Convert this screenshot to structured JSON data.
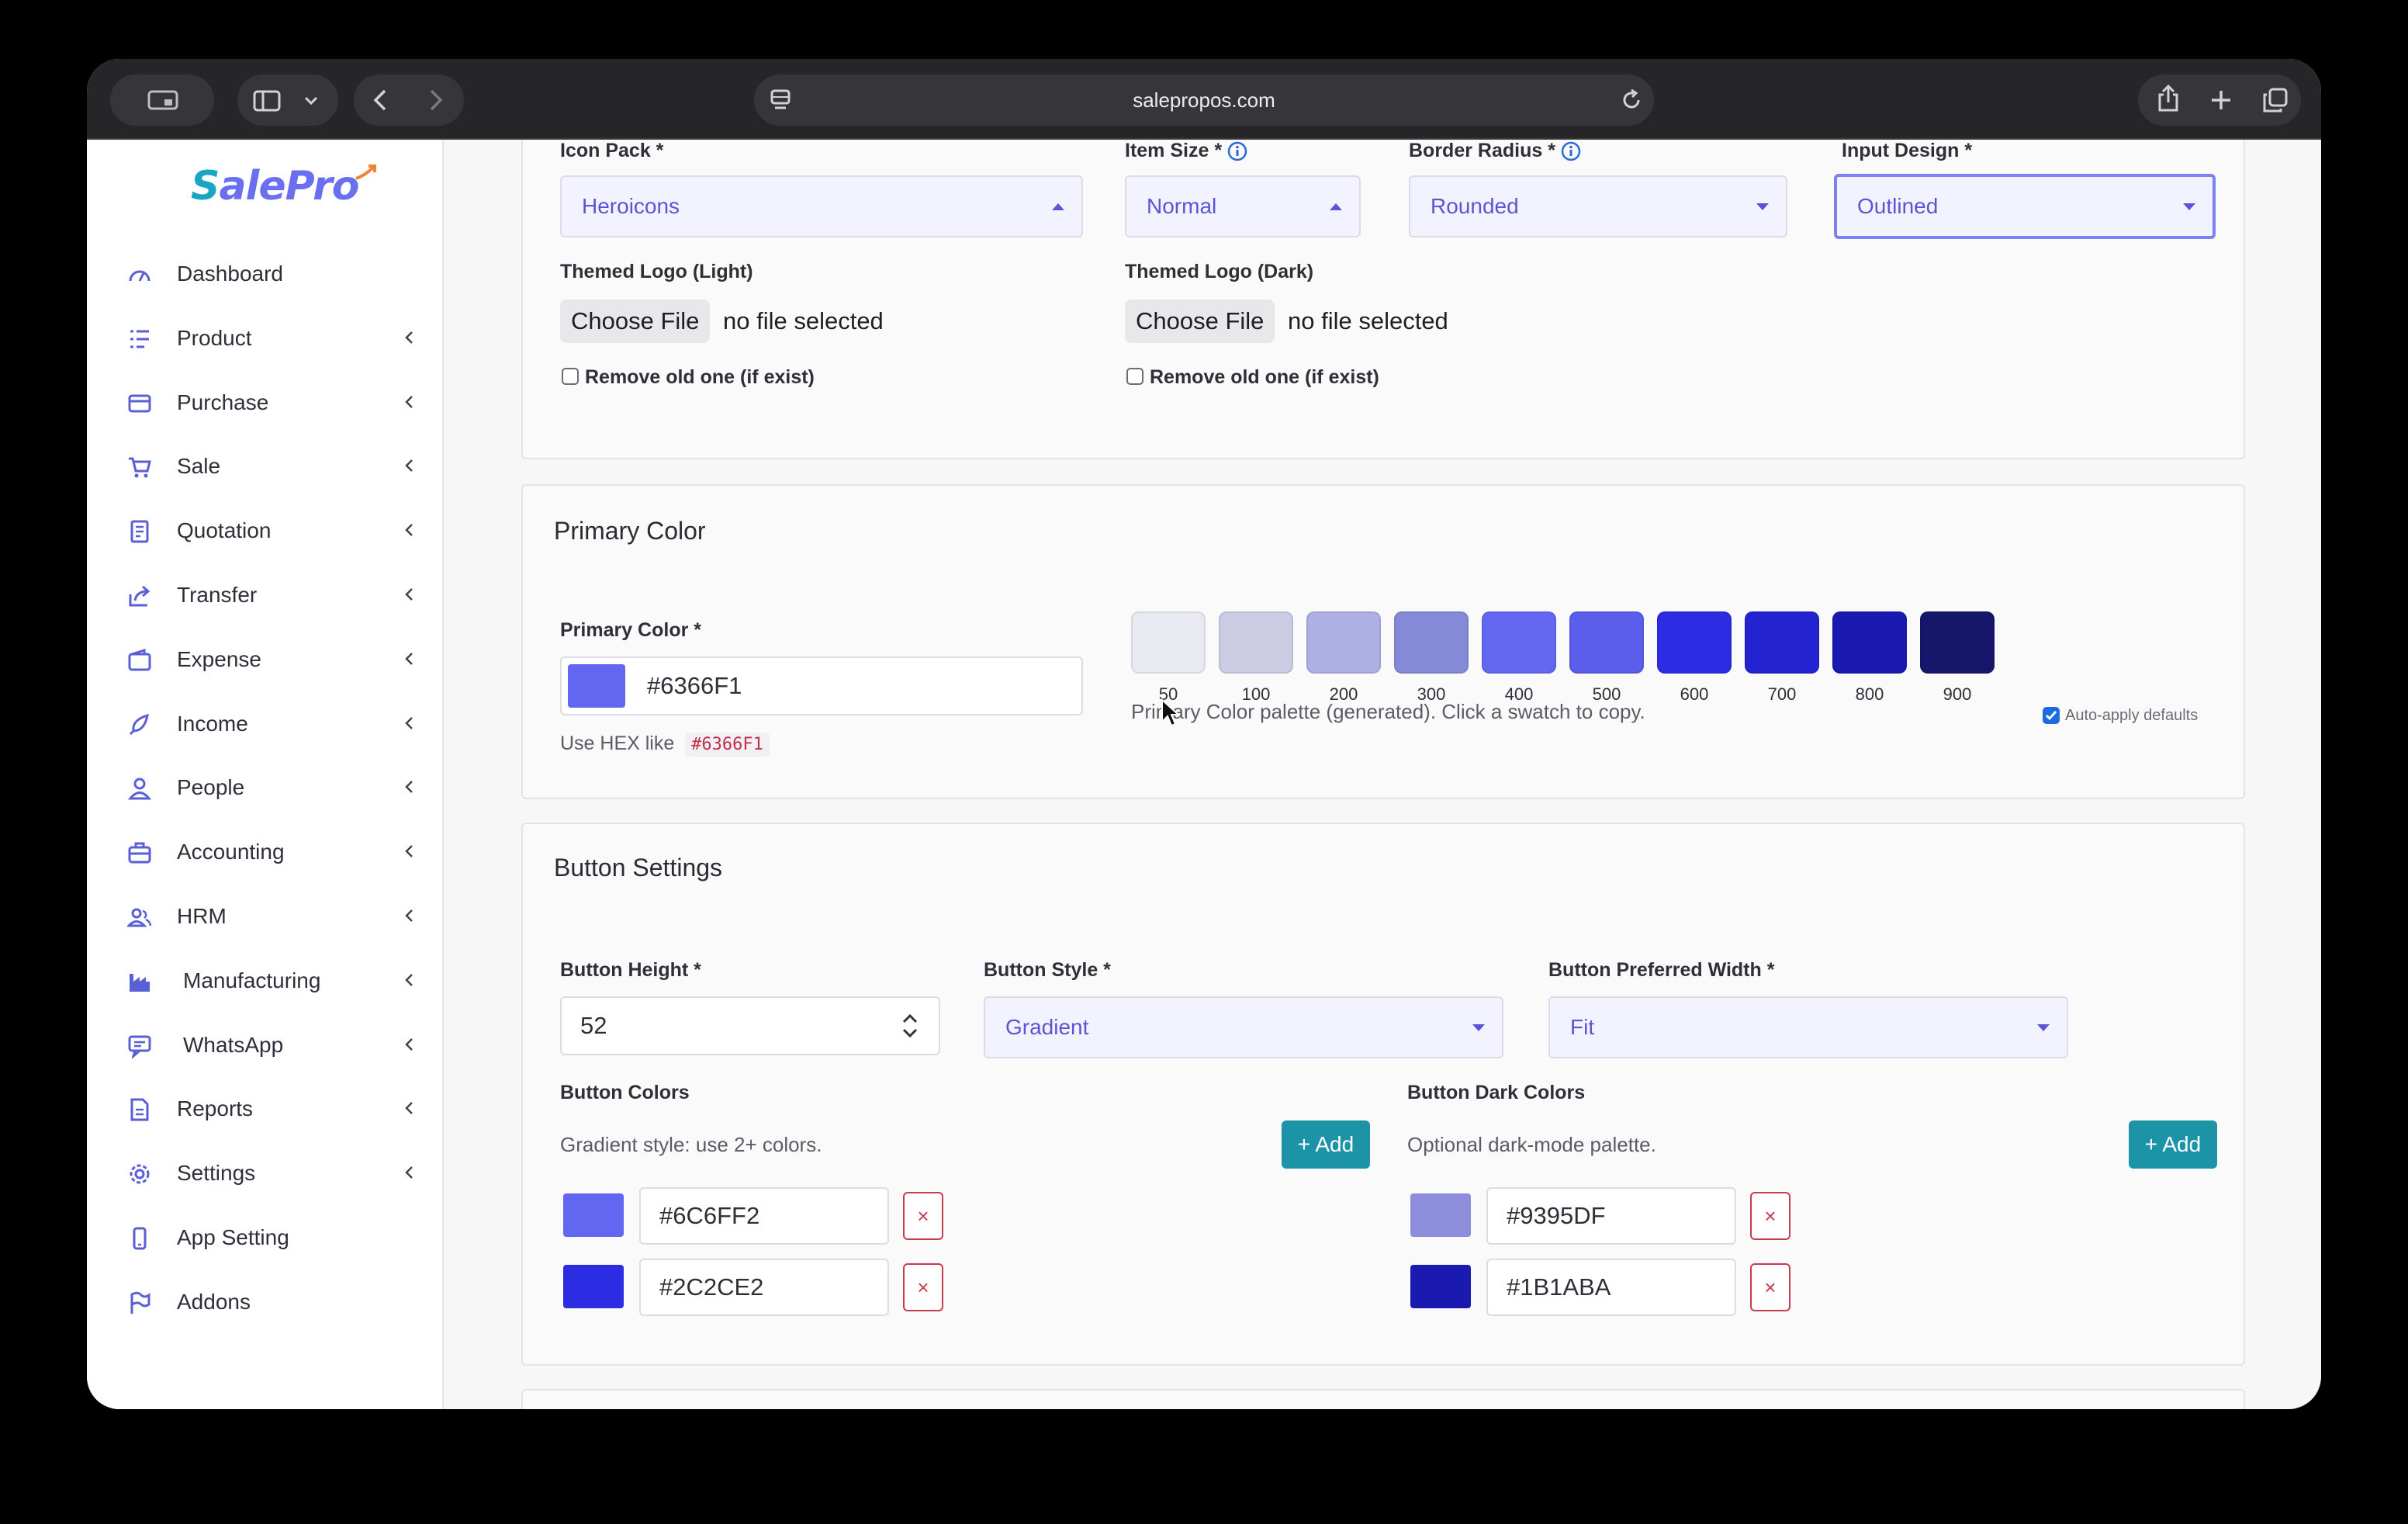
{
  "browser": {
    "url": "salepropos.com"
  },
  "logo": {
    "text_a": "S",
    "text_b": "alePro"
  },
  "sidebar": {
    "items": [
      {
        "label": "Dashboard",
        "icon": "gauge-icon"
      },
      {
        "label": "Product",
        "icon": "list-icon"
      },
      {
        "label": "Purchase",
        "icon": "card-icon"
      },
      {
        "label": "Sale",
        "icon": "cart-icon"
      },
      {
        "label": "Quotation",
        "icon": "document-icon"
      },
      {
        "label": "Transfer",
        "icon": "share-icon"
      },
      {
        "label": "Expense",
        "icon": "wallet-icon"
      },
      {
        "label": "Income",
        "icon": "rocket-icon"
      },
      {
        "label": "People",
        "icon": "user-icon"
      },
      {
        "label": "Accounting",
        "icon": "briefcase-icon"
      },
      {
        "label": "HRM",
        "icon": "users-icon"
      },
      {
        "label": "Manufacturing",
        "icon": "factory-icon"
      },
      {
        "label": "WhatsApp",
        "icon": "chat-icon"
      },
      {
        "label": "Reports",
        "icon": "file-icon"
      },
      {
        "label": "Settings",
        "icon": "gear-icon"
      },
      {
        "label": "App Setting",
        "icon": "phone-icon"
      },
      {
        "label": "Addons",
        "icon": "flag-icon"
      }
    ]
  },
  "top_form": {
    "icon_pack": {
      "label": "Icon Pack *",
      "value": "Heroicons"
    },
    "item_size": {
      "label": "Item Size *",
      "value": "Normal"
    },
    "border_radius": {
      "label": "Border Radius *",
      "value": "Rounded"
    },
    "input_design": {
      "label": "Input Design *",
      "value": "Outlined"
    },
    "logo_light": {
      "label": "Themed Logo (Light)",
      "button": "Choose File",
      "status": "no file selected",
      "remove": "Remove old one (if exist)"
    },
    "logo_dark": {
      "label": "Themed Logo (Dark)",
      "button": "Choose File",
      "status": "no file selected",
      "remove": "Remove old one (if exist)"
    }
  },
  "primary_color": {
    "title": "Primary Color",
    "label": "Primary Color *",
    "value": "#6366F1",
    "hint_prefix": "Use HEX like",
    "hint_code": "#6366F1",
    "palette_hint": "Primary Color palette (generated). Click a swatch to copy.",
    "auto_apply": "Auto-apply defaults",
    "swatches": [
      {
        "label": "50",
        "color": "#E9E9F2"
      },
      {
        "label": "100",
        "color": "#CBCBE3"
      },
      {
        "label": "200",
        "color": "#ADAFE5"
      },
      {
        "label": "300",
        "color": "#8489D8"
      },
      {
        "label": "400",
        "color": "#6366F1"
      },
      {
        "label": "500",
        "color": "#5B5EEA"
      },
      {
        "label": "600",
        "color": "#2C2CE2"
      },
      {
        "label": "700",
        "color": "#2323D2"
      },
      {
        "label": "800",
        "color": "#1B1AB0"
      },
      {
        "label": "900",
        "color": "#16166B"
      }
    ]
  },
  "button_settings": {
    "title": "Button Settings",
    "height": {
      "label": "Button Height *",
      "value": "52"
    },
    "style": {
      "label": "Button Style *",
      "value": "Gradient"
    },
    "width": {
      "label": "Button Preferred Width *",
      "value": "Fit"
    },
    "colors": {
      "label": "Button Colors",
      "hint": "Gradient style: use 2+ colors.",
      "add": "+ Add",
      "items": [
        {
          "hex": "#6C6FF2",
          "swatch": "#6366F1"
        },
        {
          "hex": "#2C2CE2",
          "swatch": "#2C2CE2"
        }
      ]
    },
    "dark_colors": {
      "label": "Button Dark Colors",
      "hint": "Optional dark-mode palette.",
      "add": "+ Add",
      "items": [
        {
          "hex": "#9395DF",
          "swatch": "#8C8EDC"
        },
        {
          "hex": "#1B1ABA",
          "swatch": "#1B1AB0"
        }
      ]
    },
    "remove_symbol": "×"
  }
}
